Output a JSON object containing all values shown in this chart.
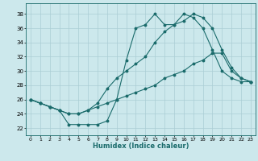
{
  "xlabel": "Humidex (Indice chaleur)",
  "bg_color": "#cce8ec",
  "grid_color": "#aacdd4",
  "line_color": "#1a6b6b",
  "x_ticks": [
    0,
    1,
    2,
    3,
    4,
    5,
    6,
    7,
    8,
    9,
    10,
    11,
    12,
    13,
    14,
    15,
    16,
    17,
    18,
    19,
    20,
    21,
    22,
    23
  ],
  "y_ticks": [
    22,
    24,
    26,
    28,
    30,
    32,
    34,
    36,
    38
  ],
  "xlim": [
    -0.5,
    23.5
  ],
  "ylim": [
    21.0,
    39.5
  ],
  "series1": {
    "x": [
      0,
      1,
      2,
      3,
      4,
      5,
      6,
      7,
      8,
      9,
      10,
      11,
      12,
      13,
      14,
      15,
      16,
      17,
      18,
      19,
      20,
      21,
      22,
      23
    ],
    "y": [
      26.0,
      25.5,
      25.0,
      24.5,
      22.5,
      22.5,
      22.5,
      22.5,
      23.0,
      26.0,
      31.5,
      36.0,
      36.5,
      38.0,
      36.5,
      36.5,
      38.0,
      37.5,
      36.0,
      33.0,
      30.0,
      29.0,
      28.5,
      28.5
    ]
  },
  "series2": {
    "x": [
      0,
      1,
      2,
      3,
      4,
      5,
      6,
      7,
      8,
      9,
      10,
      11,
      12,
      13,
      14,
      15,
      16,
      17,
      18,
      19,
      20,
      21,
      22,
      23
    ],
    "y": [
      26.0,
      25.5,
      25.0,
      24.5,
      24.0,
      24.0,
      24.5,
      25.5,
      27.5,
      29.0,
      30.0,
      31.0,
      32.0,
      34.0,
      35.5,
      36.5,
      37.0,
      38.0,
      37.5,
      36.0,
      33.0,
      30.5,
      29.0,
      28.5
    ]
  },
  "series3": {
    "x": [
      0,
      1,
      2,
      3,
      4,
      5,
      6,
      7,
      8,
      9,
      10,
      11,
      12,
      13,
      14,
      15,
      16,
      17,
      18,
      19,
      20,
      21,
      22,
      23
    ],
    "y": [
      26.0,
      25.5,
      25.0,
      24.5,
      24.0,
      24.0,
      24.5,
      25.0,
      25.5,
      26.0,
      26.5,
      27.0,
      27.5,
      28.0,
      29.0,
      29.5,
      30.0,
      31.0,
      31.5,
      32.5,
      32.5,
      30.0,
      29.0,
      28.5
    ]
  }
}
